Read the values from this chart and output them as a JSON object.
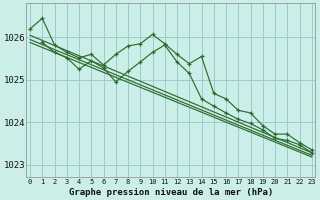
{
  "title": "Graphe pression niveau de la mer (hPa)",
  "background_color": "#cceee8",
  "grid_color": "#99cccc",
  "line_color": "#2d6b2d",
  "xlim": [
    -0.3,
    23.3
  ],
  "ylim": [
    1022.7,
    1026.8
  ],
  "yticks": [
    1023,
    1024,
    1025,
    1026
  ],
  "xticks": [
    0,
    1,
    2,
    3,
    4,
    5,
    6,
    7,
    8,
    9,
    10,
    11,
    12,
    13,
    14,
    15,
    16,
    17,
    18,
    19,
    20,
    21,
    22,
    23
  ],
  "series": [
    {
      "x": [
        0,
        1,
        2,
        3,
        4,
        5,
        6,
        7,
        8,
        9,
        10,
        11,
        12,
        13,
        14,
        15,
        16,
        17,
        18,
        19,
        20,
        21,
        22,
        23
      ],
      "y": [
        1026.2,
        1026.45,
        1025.82,
        1025.65,
        1025.52,
        1025.6,
        1025.35,
        1025.6,
        1025.8,
        1025.85,
        1026.07,
        1025.85,
        1025.6,
        1025.38,
        1025.55,
        1024.68,
        1024.55,
        1024.28,
        1024.22,
        1023.92,
        1023.72,
        1023.72,
        1023.52,
        1023.35
      ]
    },
    {
      "x": [
        1,
        2,
        3,
        4,
        5,
        6,
        7,
        8,
        9,
        10,
        11,
        12,
        13,
        14,
        15,
        16,
        17,
        18,
        19,
        20,
        21,
        22,
        23
      ],
      "y": [
        1025.88,
        1025.65,
        1025.52,
        1025.25,
        1025.45,
        1025.28,
        1024.95,
        1025.2,
        1025.42,
        1025.65,
        1025.82,
        1025.42,
        1025.15,
        1024.55,
        1024.38,
        1024.22,
        1024.07,
        1023.97,
        1023.82,
        1023.62,
        1023.57,
        1023.47,
        1023.28
      ]
    },
    {
      "x": [
        0,
        23
      ],
      "y": [
        1026.05,
        1023.28
      ]
    },
    {
      "x": [
        0,
        23
      ],
      "y": [
        1025.95,
        1023.22
      ]
    },
    {
      "x": [
        0,
        23
      ],
      "y": [
        1025.88,
        1023.18
      ]
    }
  ]
}
